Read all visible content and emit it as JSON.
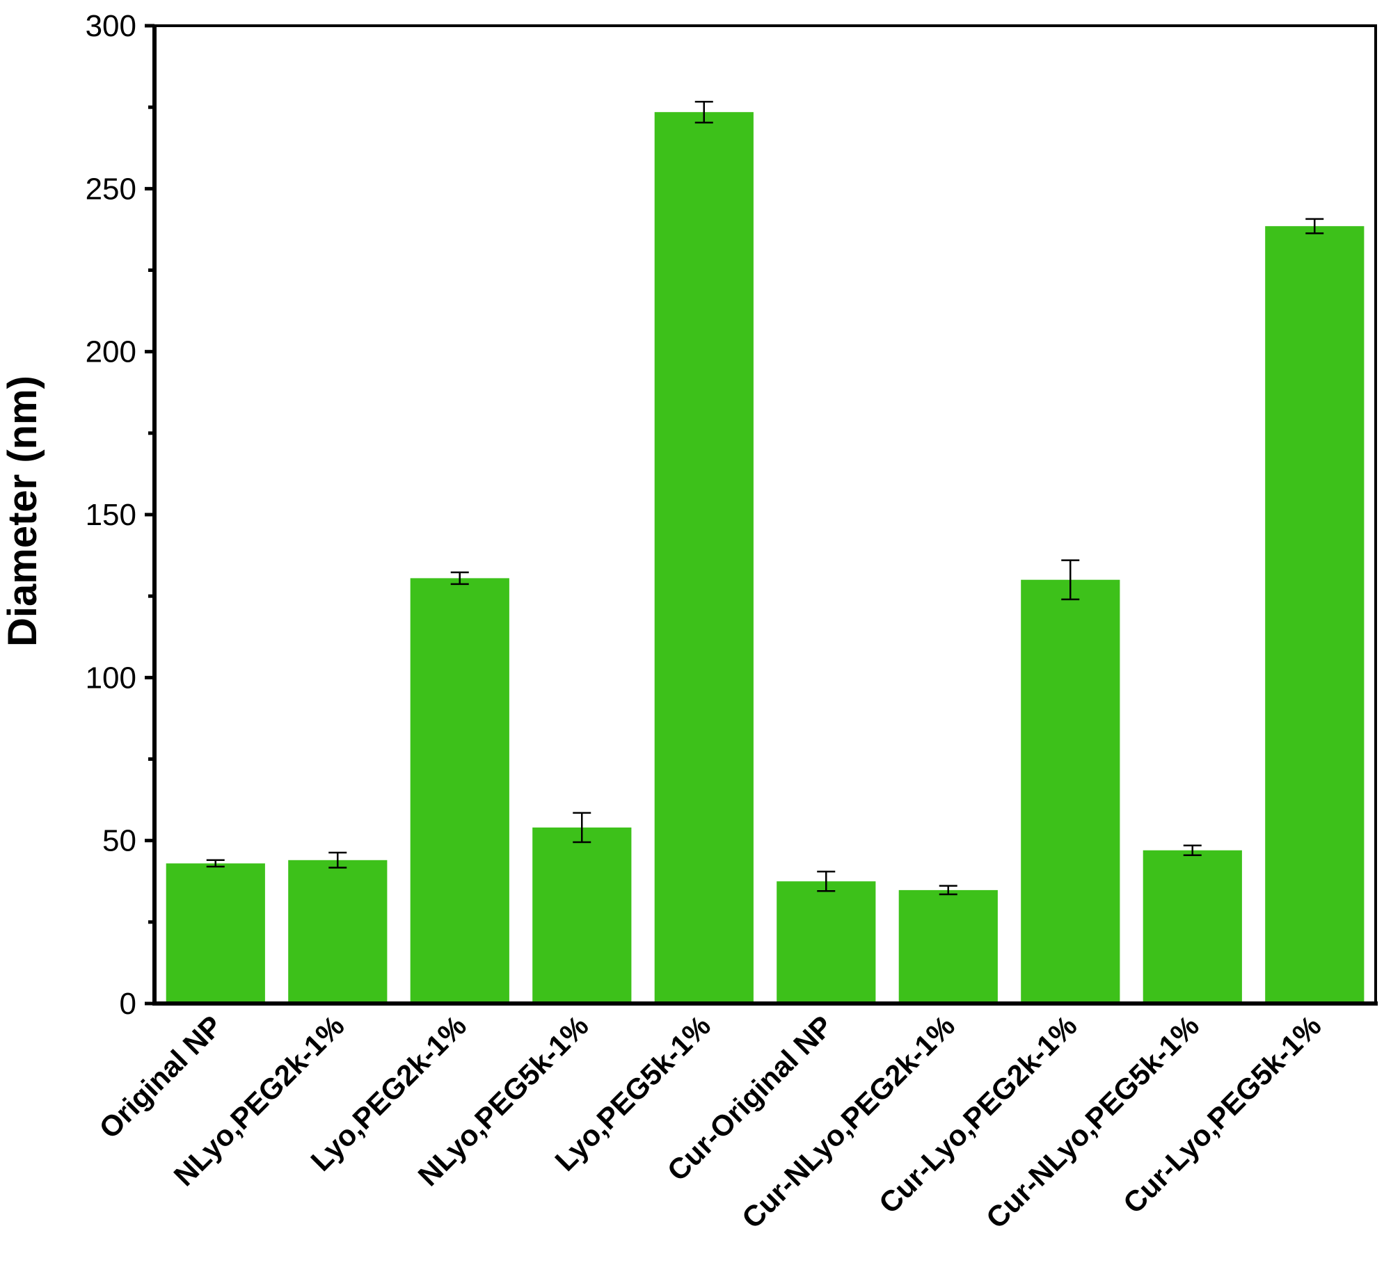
{
  "chart_data": {
    "type": "bar",
    "title": "",
    "xlabel": "",
    "ylabel": "Diameter (nm)",
    "ylim": [
      0,
      300
    ],
    "yticks": [
      0,
      50,
      100,
      150,
      200,
      250,
      300
    ],
    "ytick_labels": [
      "0",
      "50",
      "100",
      "150",
      "200",
      "250",
      "300"
    ],
    "categories": [
      "Original NP",
      "NLyo,PEG2k-1%",
      "Lyo,PEG2k-1%",
      "NLyo,PEG5k-1%",
      "Lyo,PEG5k-1%",
      "Cur-Original NP",
      "Cur-NLyo,PEG2k-1%",
      "Cur-Lyo,PEG2k-1%",
      "Cur-NLyo,PEG5k-1%",
      "Cur-Lyo,PEG5k-1%"
    ],
    "values": [
      43,
      44,
      130.5,
      54,
      273.5,
      37.5,
      34.8,
      130,
      47,
      238.5
    ],
    "errors": [
      1,
      2.3,
      1.8,
      4.5,
      3.2,
      3,
      1.3,
      6,
      1.5,
      2.2
    ],
    "bar_color": "#3dc11a",
    "grid": false,
    "legend": "none"
  }
}
